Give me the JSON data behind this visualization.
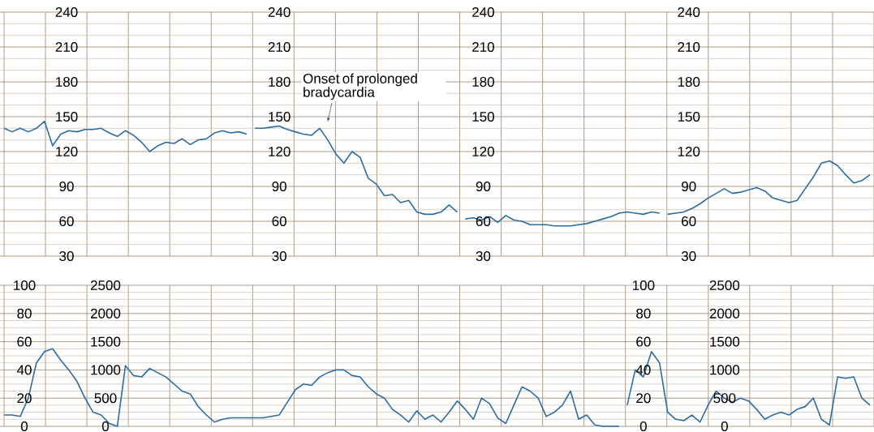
{
  "chart_data": [
    {
      "type": "line",
      "color": "#2b6ca3",
      "ylim": [
        30,
        240
      ],
      "yticks": [
        30,
        60,
        90,
        120,
        150,
        180,
        210,
        240
      ],
      "grid": true,
      "tick_labels": "y",
      "categories": [
        null,
        null,
        null,
        null,
        null,
        null,
        null,
        null,
        null,
        null,
        null,
        null,
        null,
        null,
        null,
        null,
        null,
        null,
        null,
        null,
        null,
        null,
        null,
        null,
        null,
        null,
        null,
        null,
        null,
        null,
        null
      ],
      "values": [
        140,
        137,
        140,
        137,
        140,
        146,
        125,
        135,
        138,
        137,
        139,
        139,
        140,
        136,
        133,
        138,
        134,
        128,
        120,
        125,
        128,
        127,
        131,
        126,
        130,
        131,
        136,
        138,
        136,
        137,
        135
      ]
    },
    {
      "type": "line",
      "color": "#2b6ca3",
      "ylim": [
        30,
        240
      ],
      "yticks": [
        30,
        60,
        90,
        120,
        150,
        180,
        210,
        240
      ],
      "grid": true,
      "tick_labels": "y",
      "annotations": [
        "Onset of prolonged bradycardia"
      ],
      "categories": [
        null,
        null,
        null,
        null,
        null,
        null,
        null,
        null,
        null,
        null,
        null,
        null,
        null,
        null,
        null,
        null,
        null,
        null,
        null,
        null,
        null,
        null,
        null,
        null,
        null,
        null
      ],
      "values": [
        140,
        140,
        141,
        142,
        139,
        137,
        135,
        134,
        140,
        130,
        118,
        110,
        120,
        115,
        97,
        92,
        82,
        83,
        76,
        78,
        68,
        66,
        66,
        68,
        74,
        68
      ]
    },
    {
      "type": "line",
      "color": "#2b6ca3",
      "ylim": [
        30,
        240
      ],
      "yticks": [
        30,
        60,
        90,
        120,
        150,
        180,
        210,
        240
      ],
      "grid": true,
      "tick_labels": "y",
      "categories": [
        null,
        null,
        null,
        null,
        null,
        null,
        null,
        null,
        null,
        null,
        null,
        null,
        null,
        null,
        null,
        null,
        null,
        null,
        null,
        null,
        null,
        null,
        null,
        null,
        null
      ],
      "values": [
        62,
        63,
        61,
        64,
        59,
        65,
        61,
        60,
        57,
        57,
        57,
        56,
        56,
        56,
        57,
        58,
        60,
        62,
        64,
        67,
        68,
        67,
        66,
        68,
        67
      ]
    },
    {
      "type": "line",
      "color": "#2b6ca3",
      "ylim": [
        30,
        240
      ],
      "yticks": [
        30,
        60,
        90,
        120,
        150,
        180,
        210,
        240
      ],
      "grid": true,
      "tick_labels": "y",
      "categories": [
        null,
        null,
        null,
        null,
        null,
        null,
        null,
        null,
        null,
        null,
        null,
        null,
        null,
        null,
        null,
        null,
        null,
        null,
        null,
        null,
        null,
        null,
        null,
        null,
        null,
        null
      ],
      "values": [
        66,
        67,
        68,
        71,
        75,
        80,
        84,
        88,
        84,
        85,
        87,
        89,
        86,
        80,
        78,
        76,
        78,
        88,
        98,
        110,
        112,
        108,
        100,
        93,
        95,
        100
      ]
    },
    {
      "type": "line",
      "color": "#2b6ca3",
      "ylim": [
        0,
        100
      ],
      "yticks": [
        0,
        20,
        40,
        60,
        80,
        100
      ],
      "y2lim": [
        0,
        2500
      ],
      "y2ticks": [
        0,
        500,
        1000,
        1500,
        2000,
        2500
      ],
      "grid": true,
      "tick_labels": "y",
      "categories": [
        null,
        null,
        null,
        null,
        null,
        null,
        null,
        null,
        null,
        null,
        null,
        null,
        null,
        null,
        null,
        null,
        null,
        null,
        null,
        null,
        null,
        null,
        null,
        null,
        null,
        null,
        null,
        null,
        null,
        null,
        null,
        null,
        null,
        null,
        null,
        null,
        null,
        null,
        null,
        null,
        null,
        null,
        null,
        null,
        null,
        null,
        null,
        null,
        null,
        null,
        null,
        null,
        null,
        null,
        null,
        null,
        null,
        null,
        null,
        null,
        null,
        null,
        null,
        null,
        null,
        null,
        null,
        null,
        null,
        null,
        null,
        null,
        null,
        null,
        null,
        null,
        null
      ],
      "values": [
        8,
        8,
        7,
        20,
        45,
        53,
        55,
        47,
        40,
        32,
        20,
        10,
        8,
        2,
        0,
        43,
        36,
        35,
        41,
        38,
        35,
        30,
        25,
        23,
        14,
        8,
        3,
        5,
        6,
        6,
        6,
        6,
        6,
        7,
        8,
        17,
        26,
        30,
        29,
        35,
        38,
        40,
        40,
        36,
        35,
        28,
        23,
        20,
        12,
        8,
        3,
        11,
        5,
        8,
        3,
        10,
        18,
        12,
        5,
        20,
        16,
        6,
        2,
        15,
        28,
        25,
        20,
        7,
        10,
        15,
        25,
        5,
        8,
        1,
        0,
        0,
        0
      ]
    },
    {
      "type": "line",
      "color": "#2b6ca3",
      "ylim": [
        0,
        100
      ],
      "yticks": [
        0,
        20,
        40,
        60,
        80,
        100
      ],
      "y2lim": [
        0,
        2500
      ],
      "y2ticks": [
        0,
        500,
        1000,
        1500,
        2000,
        2500
      ],
      "grid": true,
      "tick_labels": "y",
      "categories": [
        null,
        null,
        null,
        null,
        null,
        null,
        null,
        null,
        null,
        null,
        null,
        null,
        null,
        null,
        null,
        null,
        null,
        null,
        null,
        null,
        null,
        null,
        null,
        null,
        null,
        null,
        null,
        null,
        null,
        null,
        null
      ],
      "values": [
        15,
        40,
        35,
        53,
        45,
        10,
        5,
        4,
        8,
        3,
        15,
        25,
        20,
        17,
        20,
        18,
        12,
        5,
        8,
        10,
        8,
        12,
        14,
        20,
        5,
        1,
        35,
        34,
        35,
        20,
        15
      ]
    }
  ]
}
